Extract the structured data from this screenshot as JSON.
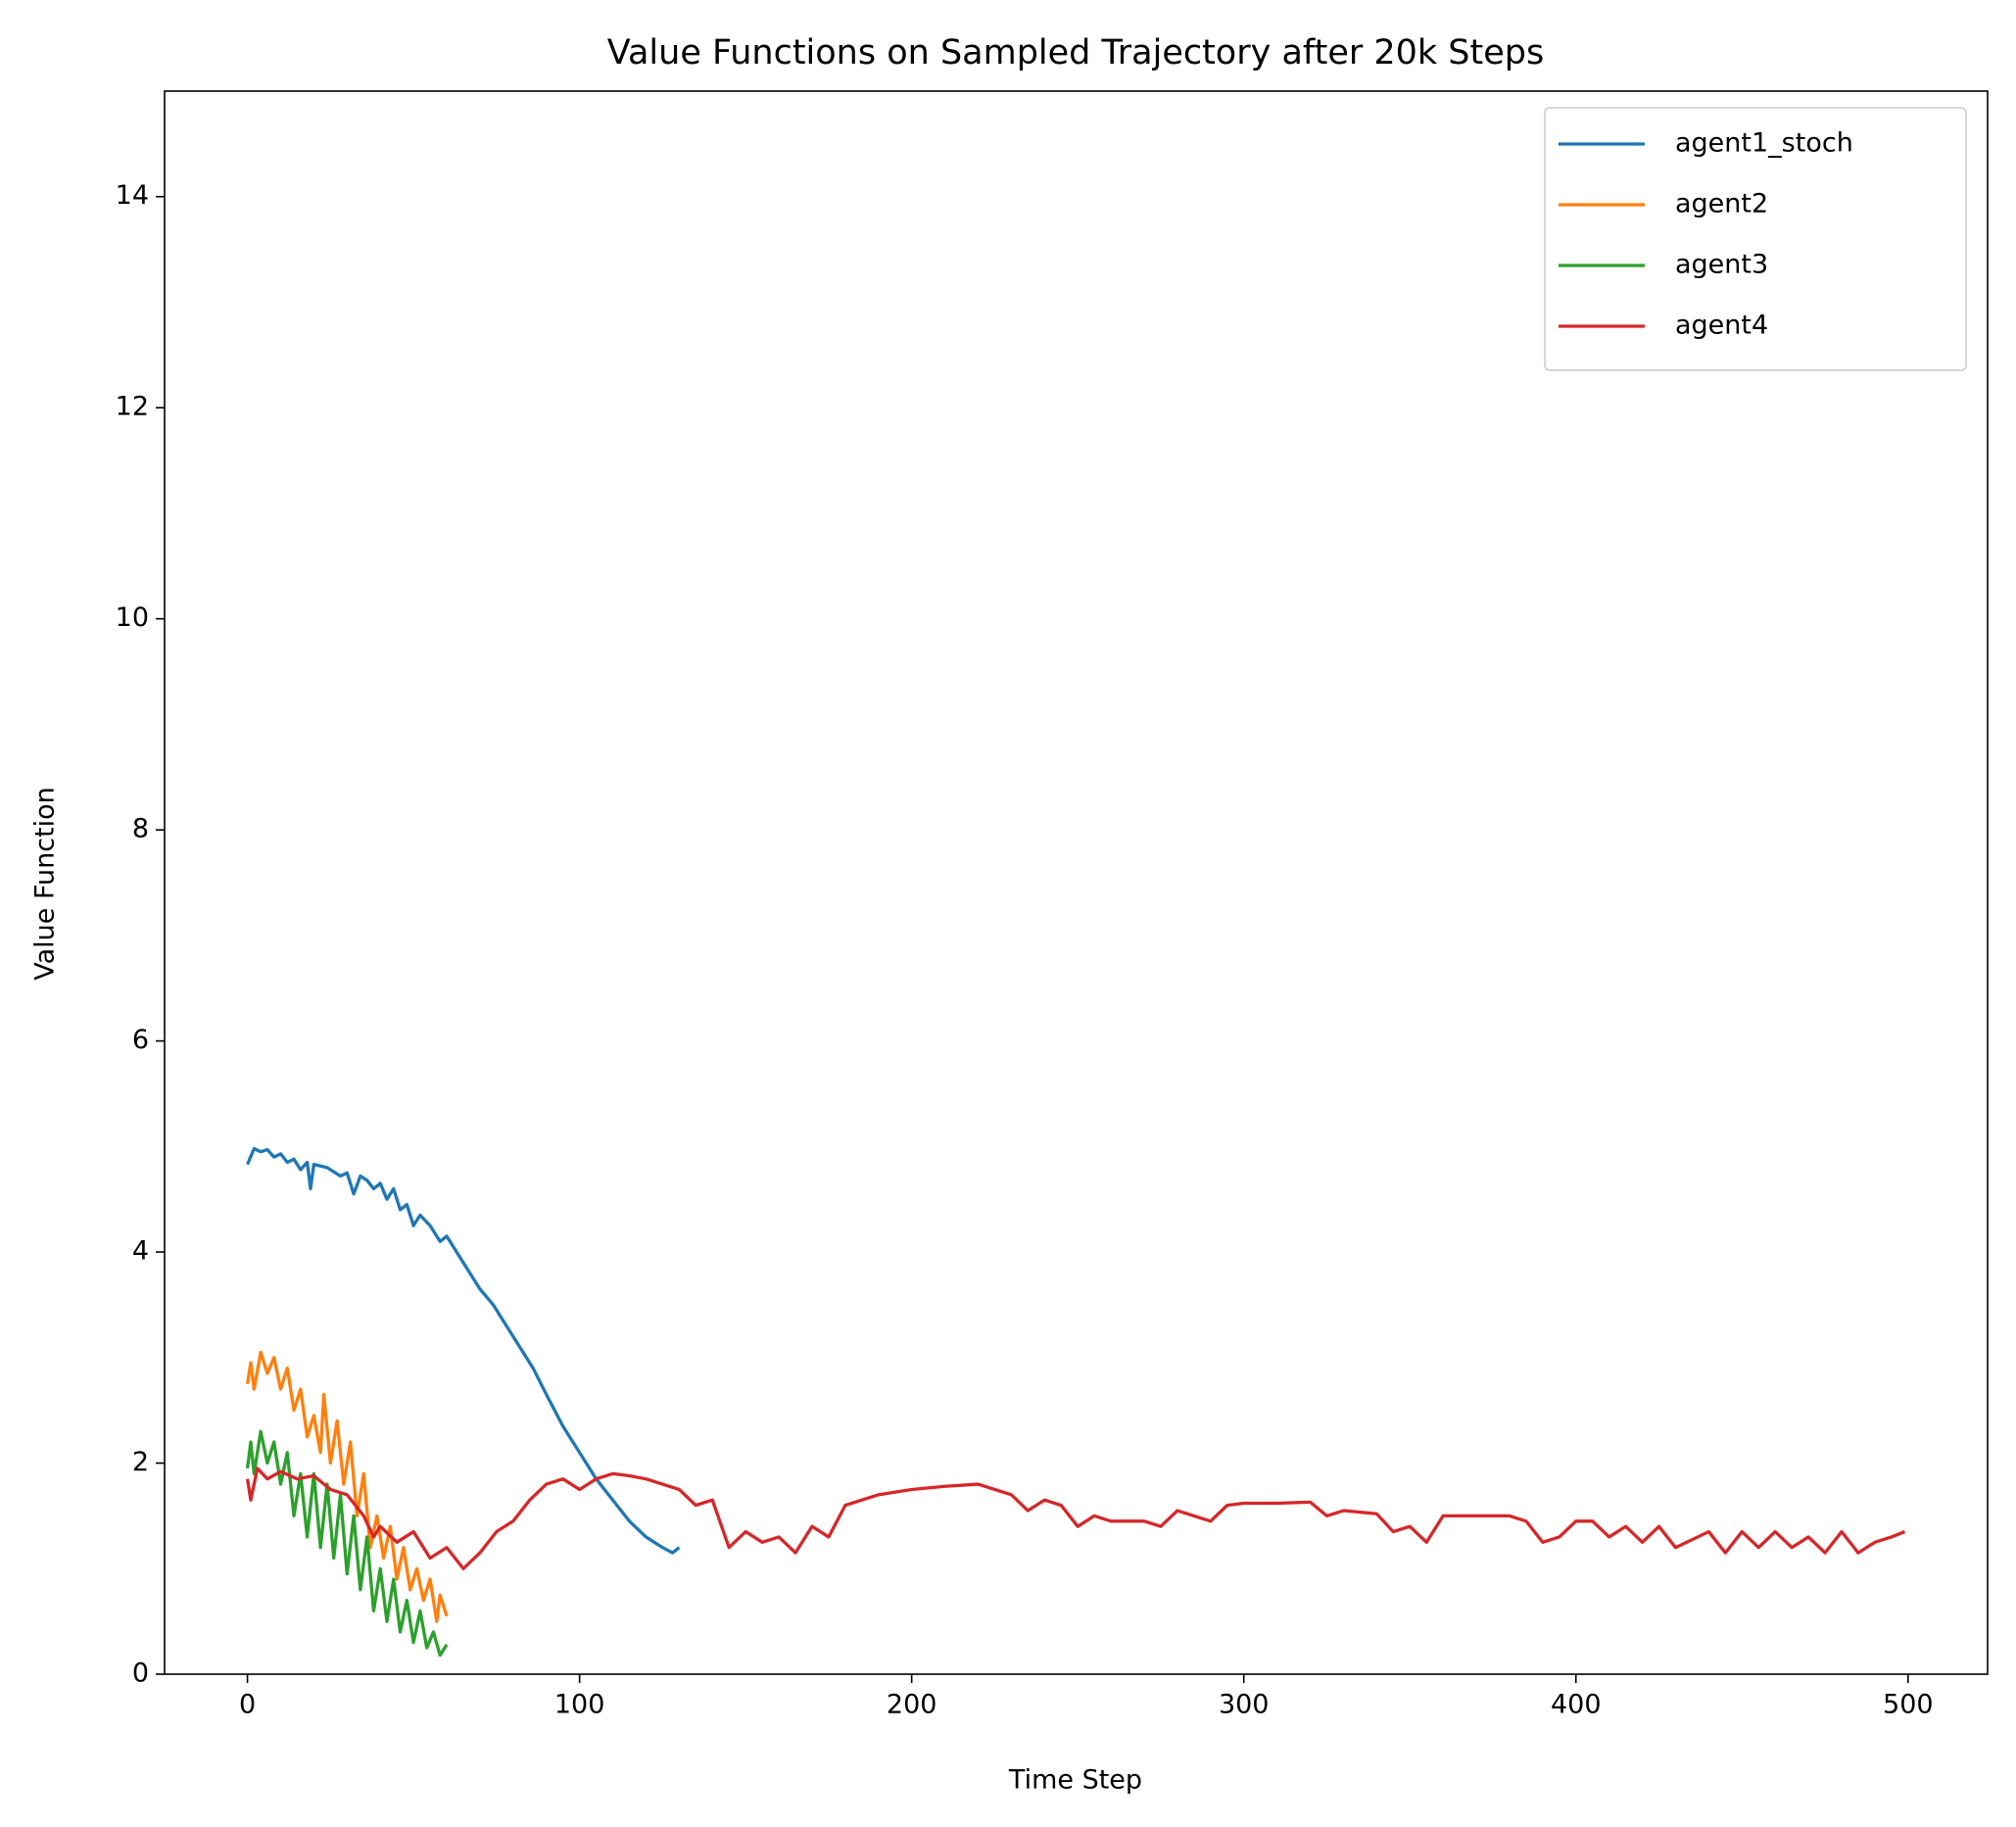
{
  "chart_data": {
    "type": "line",
    "title": "Value Functions on Sampled Trajectory after 20k Steps",
    "x_label": "Time Step",
    "y_label": "Value Function",
    "xlim": [
      -24.95,
      523.95
    ],
    "ylim": [
      0,
      15
    ],
    "xticks": [
      0,
      100,
      200,
      300,
      400,
      500
    ],
    "yticks": [
      0,
      2,
      4,
      6,
      8,
      10,
      12,
      14
    ],
    "grid": false,
    "legend": "upper-right",
    "series": [
      {
        "name": "agent1_stoch",
        "color": "#1f77b4",
        "x": [
          0,
          2,
          4,
          6,
          8,
          10,
          12,
          14,
          16,
          18,
          19,
          20,
          24,
          28,
          30,
          32,
          34,
          36,
          38,
          40,
          42,
          44,
          46,
          48,
          50,
          52,
          55,
          58,
          60,
          63,
          66,
          70,
          74,
          78,
          82,
          86,
          90,
          95,
          100,
          105,
          110,
          115,
          120,
          125,
          128,
          130
        ],
        "values": [
          4.83,
          4.98,
          4.95,
          4.97,
          4.9,
          4.93,
          4.85,
          4.88,
          4.78,
          4.85,
          4.6,
          4.83,
          4.8,
          4.72,
          4.75,
          4.55,
          4.72,
          4.68,
          4.6,
          4.65,
          4.5,
          4.6,
          4.4,
          4.45,
          4.25,
          4.35,
          4.25,
          4.1,
          4.15,
          4.0,
          3.85,
          3.65,
          3.5,
          3.3,
          3.1,
          2.9,
          2.65,
          2.35,
          2.1,
          1.85,
          1.65,
          1.45,
          1.3,
          1.2,
          1.15,
          1.2
        ]
      },
      {
        "name": "agent2",
        "color": "#ff7f0e",
        "x": [
          0,
          1,
          2,
          4,
          6,
          8,
          10,
          12,
          14,
          16,
          18,
          20,
          22,
          23,
          25,
          27,
          29,
          31,
          33,
          35,
          37,
          39,
          41,
          43,
          45,
          47,
          49,
          51,
          53,
          55,
          57,
          58,
          60
        ],
        "values": [
          2.75,
          2.95,
          2.7,
          3.05,
          2.85,
          3.0,
          2.7,
          2.9,
          2.5,
          2.7,
          2.25,
          2.45,
          2.1,
          2.65,
          2.0,
          2.4,
          1.8,
          2.2,
          1.5,
          1.9,
          1.2,
          1.5,
          1.1,
          1.4,
          0.9,
          1.2,
          0.8,
          1.0,
          0.7,
          0.9,
          0.5,
          0.75,
          0.55
        ]
      },
      {
        "name": "agent3",
        "color": "#2ca02c",
        "x": [
          0,
          1,
          2,
          4,
          6,
          8,
          10,
          12,
          14,
          16,
          18,
          20,
          22,
          24,
          26,
          28,
          30,
          32,
          34,
          36,
          38,
          40,
          42,
          44,
          46,
          48,
          50,
          52,
          54,
          56,
          58,
          60
        ],
        "values": [
          1.95,
          2.2,
          1.9,
          2.3,
          2.0,
          2.2,
          1.8,
          2.1,
          1.5,
          1.9,
          1.3,
          1.9,
          1.2,
          1.8,
          1.1,
          1.7,
          0.95,
          1.5,
          0.8,
          1.3,
          0.6,
          1.0,
          0.5,
          0.9,
          0.4,
          0.7,
          0.3,
          0.6,
          0.25,
          0.4,
          0.18,
          0.28
        ]
      },
      {
        "name": "agent4",
        "color": "#d62728",
        "x": [
          0,
          1,
          3,
          6,
          10,
          15,
          20,
          25,
          30,
          35,
          38,
          40,
          45,
          50,
          55,
          60,
          65,
          70,
          75,
          80,
          85,
          90,
          95,
          100,
          105,
          110,
          115,
          120,
          125,
          130,
          135,
          140,
          145,
          150,
          155,
          160,
          165,
          170,
          175,
          180,
          185,
          190,
          200,
          210,
          220,
          225,
          230,
          235,
          240,
          245,
          250,
          255,
          260,
          270,
          275,
          280,
          285,
          290,
          295,
          300,
          310,
          320,
          325,
          330,
          340,
          345,
          350,
          355,
          360,
          370,
          380,
          385,
          390,
          395,
          400,
          405,
          410,
          415,
          420,
          425,
          430,
          440,
          445,
          450,
          455,
          460,
          465,
          470,
          475,
          480,
          485,
          490,
          495,
          499
        ],
        "values": [
          1.85,
          1.65,
          1.95,
          1.85,
          1.92,
          1.85,
          1.88,
          1.75,
          1.7,
          1.5,
          1.3,
          1.4,
          1.25,
          1.35,
          1.1,
          1.2,
          1.0,
          1.15,
          1.35,
          1.45,
          1.65,
          1.8,
          1.85,
          1.75,
          1.85,
          1.9,
          1.88,
          1.85,
          1.8,
          1.75,
          1.6,
          1.65,
          1.2,
          1.35,
          1.25,
          1.3,
          1.15,
          1.4,
          1.3,
          1.6,
          1.65,
          1.7,
          1.75,
          1.78,
          1.8,
          1.75,
          1.7,
          1.55,
          1.65,
          1.6,
          1.4,
          1.5,
          1.45,
          1.45,
          1.4,
          1.55,
          1.5,
          1.45,
          1.6,
          1.62,
          1.62,
          1.63,
          1.5,
          1.55,
          1.52,
          1.35,
          1.4,
          1.25,
          1.5,
          1.5,
          1.5,
          1.45,
          1.25,
          1.3,
          1.45,
          1.45,
          1.3,
          1.4,
          1.25,
          1.4,
          1.2,
          1.35,
          1.15,
          1.35,
          1.2,
          1.35,
          1.2,
          1.3,
          1.15,
          1.35,
          1.15,
          1.25,
          1.3,
          1.35
        ]
      }
    ]
  }
}
